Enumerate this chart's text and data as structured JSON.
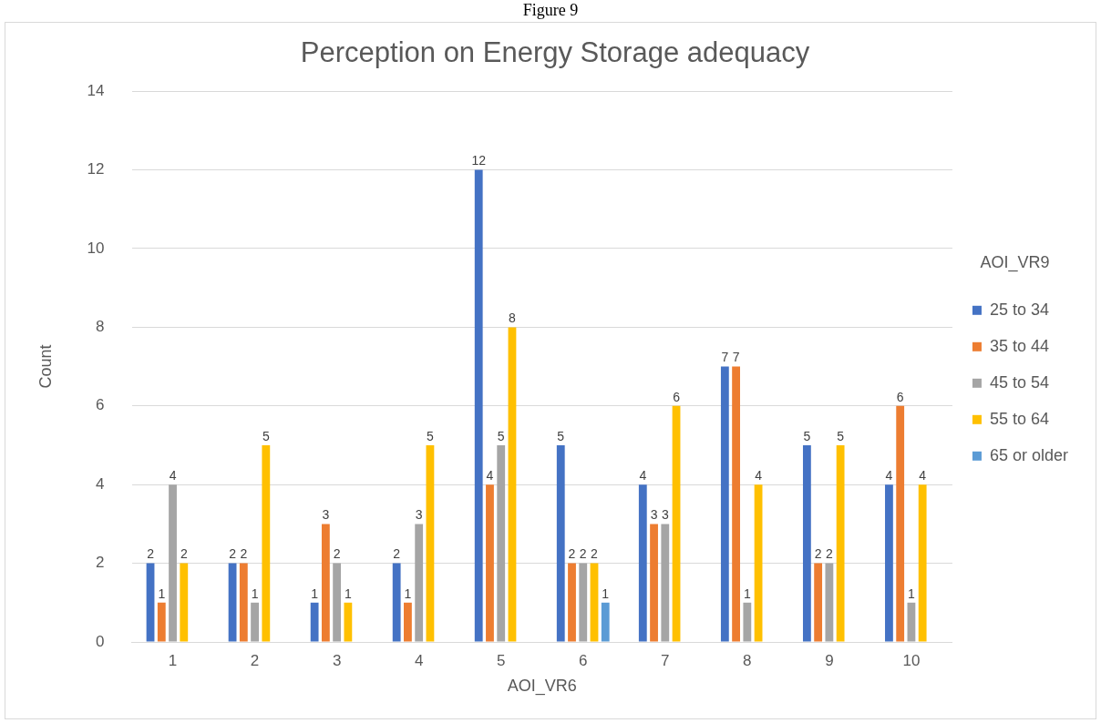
{
  "chart_data": {
    "type": "bar",
    "title": "Perception on Energy Storage adequacy",
    "xlabel": "AOI_VR6",
    "ylabel": "Count",
    "legend_title": "AOI_VR9",
    "annotations": [
      "Figure 9"
    ],
    "categories": [
      "1",
      "2",
      "3",
      "4",
      "5",
      "6",
      "7",
      "8",
      "9",
      "10"
    ],
    "series": [
      {
        "name": "25 to 34",
        "color": "#4472c4",
        "values": [
          2,
          2,
          1,
          2,
          12,
          5,
          4,
          7,
          5,
          4
        ]
      },
      {
        "name": "35 to 44",
        "color": "#ed7d31",
        "values": [
          1,
          2,
          3,
          1,
          4,
          2,
          3,
          7,
          2,
          6
        ]
      },
      {
        "name": "45 to 54",
        "color": "#a5a5a5",
        "values": [
          4,
          1,
          2,
          3,
          5,
          2,
          3,
          1,
          2,
          1
        ]
      },
      {
        "name": "55 to 64",
        "color": "#ffc000",
        "values": [
          2,
          5,
          1,
          5,
          8,
          2,
          6,
          4,
          5,
          4
        ]
      },
      {
        "name": "65 or older",
        "color": "#5b9bd5",
        "values": [
          null,
          null,
          null,
          null,
          null,
          1,
          null,
          null,
          null,
          null
        ]
      }
    ],
    "ylim": [
      0,
      14
    ],
    "yticks": [
      0,
      2,
      4,
      6,
      8,
      10,
      12,
      14
    ],
    "grid": "y",
    "legend": "right",
    "data_labels": true
  }
}
